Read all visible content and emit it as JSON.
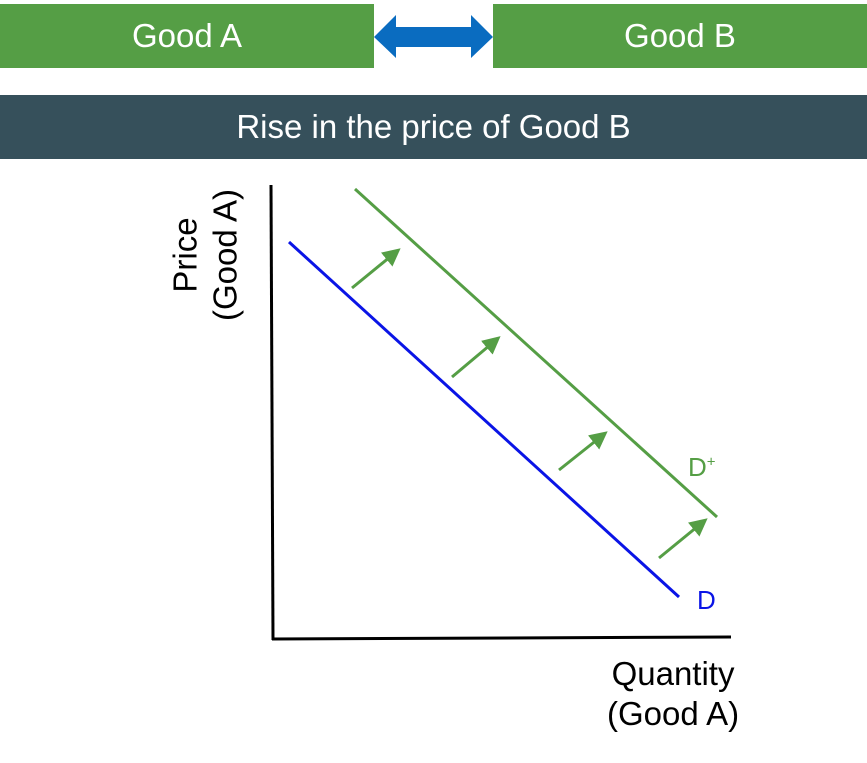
{
  "header": {
    "good_a": "Good A",
    "good_b": "Good B",
    "link_icon": "double-arrow-icon"
  },
  "title": "Rise in the price of Good B",
  "diagram": {
    "y_axis_label": [
      "Price",
      "(Good A)"
    ],
    "x_axis_label": [
      "Quantity",
      "(Good A)"
    ],
    "curves": [
      {
        "label": "D",
        "color": "#0a14e6"
      },
      {
        "label": "D",
        "superscript": "+",
        "color": "#559e45"
      }
    ],
    "shift_direction": "right"
  }
}
